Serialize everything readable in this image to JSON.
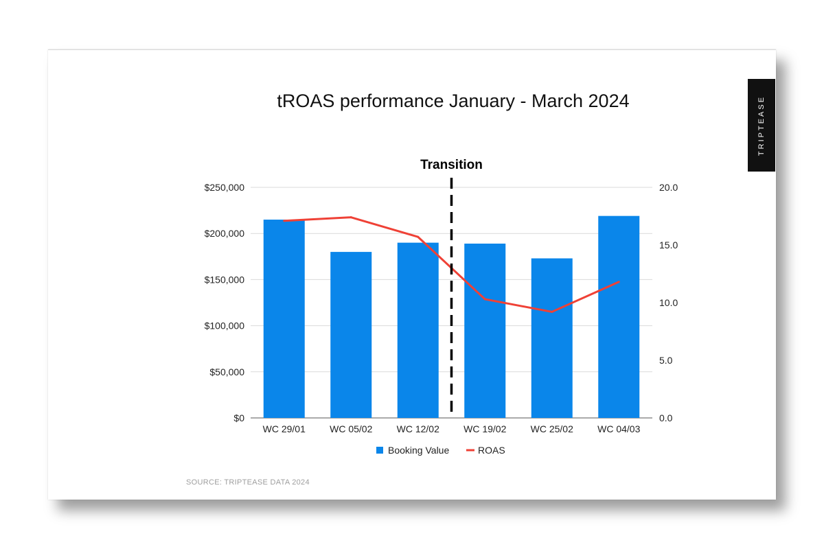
{
  "brand": "TRIPTEASE",
  "source_note": "SOURCE: TRIPTEASE DATA 2024",
  "colors": {
    "bar": "#0a86ea",
    "line": "#ef4136",
    "grid": "#d9d9d9",
    "annotation": "#000000"
  },
  "chart_data": {
    "type": "bar",
    "title": "tROAS performance January - March 2024",
    "categories": [
      "WC 29/01",
      "WC 05/02",
      "WC 12/02",
      "WC 19/02",
      "WC 25/02",
      "WC 04/03"
    ],
    "series": [
      {
        "name": "Booking Value",
        "type": "bar",
        "axis": "left",
        "values": [
          215000,
          180000,
          190000,
          189000,
          173000,
          219000
        ]
      },
      {
        "name": "ROAS",
        "type": "line",
        "axis": "right",
        "values": [
          17.1,
          17.4,
          15.7,
          10.3,
          9.2,
          11.8
        ]
      }
    ],
    "y_left": {
      "min": 0,
      "max": 250000,
      "ticks": [
        0,
        50000,
        100000,
        150000,
        200000,
        250000
      ],
      "tick_labels": [
        "$0",
        "$50,000",
        "$100,000",
        "$150,000",
        "$200,000",
        "$250,000"
      ]
    },
    "y_right": {
      "min": 0,
      "max": 20,
      "ticks": [
        0,
        5,
        10,
        15,
        20
      ],
      "tick_labels": [
        "0.0",
        "5.0",
        "10.0",
        "15.0",
        "20.0"
      ]
    },
    "annotation": {
      "label": "Transition",
      "between": [
        "WC 12/02",
        "WC 19/02"
      ],
      "style": "dashed-vertical"
    },
    "grid": true,
    "legend": "bottom"
  }
}
